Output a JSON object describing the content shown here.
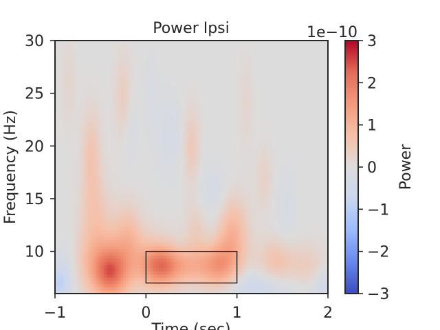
{
  "chart_data": {
    "type": "heatmap",
    "title": "Power Ipsi",
    "xlabel": "Time (sec)",
    "ylabel": "Frequency (Hz)",
    "xlim": [
      -1,
      2
    ],
    "ylim": [
      6,
      30
    ],
    "x_ticks": [
      -1,
      0,
      1,
      2
    ],
    "x_tick_labels": [
      "−1",
      "0",
      "1",
      "2"
    ],
    "y_ticks": [
      10,
      15,
      20,
      25,
      30
    ],
    "y_tick_labels": [
      "10",
      "15",
      "20",
      "25",
      "30"
    ],
    "colormap": "coolwarm",
    "grid": false,
    "colorbar": {
      "label": "Power",
      "offset_text": "1e−10",
      "range": [
        -3,
        3
      ],
      "ticks": [
        -3,
        -2,
        -1,
        0,
        1,
        2,
        3
      ],
      "tick_labels": [
        "−3",
        "−2",
        "−1",
        "0",
        "1",
        "2",
        "3"
      ],
      "colors": [
        "#3b4cc0",
        "#6788ee",
        "#9abbff",
        "#c9d7f0",
        "#dddcdc",
        "#f6bfa6",
        "#f49a7b",
        "#e36c55",
        "#b40426"
      ]
    },
    "blobs": [
      {
        "t": -0.4,
        "f": 7.8,
        "st": 0.14,
        "sf": 1.6,
        "value": 1.8
      },
      {
        "t": -0.35,
        "f": 9.5,
        "st": 0.35,
        "sf": 2.0,
        "value": 0.9
      },
      {
        "t": 0.15,
        "f": 8.6,
        "st": 0.14,
        "sf": 1.3,
        "value": 1.7
      },
      {
        "t": 0.45,
        "f": 8.6,
        "st": 0.2,
        "sf": 1.2,
        "value": 0.9
      },
      {
        "t": 0.8,
        "f": 8.6,
        "st": 0.14,
        "sf": 1.5,
        "value": 1.3
      },
      {
        "t": 0.95,
        "f": 11.5,
        "st": 0.12,
        "sf": 2.5,
        "value": 1.0
      },
      {
        "t": -0.55,
        "f": 13.5,
        "st": 0.12,
        "sf": 2.5,
        "value": 0.5
      },
      {
        "t": -0.2,
        "f": 12.0,
        "st": 0.1,
        "sf": 2.0,
        "value": 0.5
      },
      {
        "t": 0.55,
        "f": 12.0,
        "st": 0.08,
        "sf": 2.0,
        "value": 0.4
      },
      {
        "t": 1.45,
        "f": 9.0,
        "st": 0.15,
        "sf": 1.5,
        "value": 0.7
      },
      {
        "t": 1.8,
        "f": 8.5,
        "st": 0.12,
        "sf": 1.5,
        "value": 0.4
      },
      {
        "t": -0.6,
        "f": 19.0,
        "st": 0.07,
        "sf": 3.0,
        "value": 0.6
      },
      {
        "t": -0.25,
        "f": 24.0,
        "st": 0.06,
        "sf": 3.0,
        "value": 0.5
      },
      {
        "t": 0.5,
        "f": 20.0,
        "st": 0.06,
        "sf": 2.5,
        "value": 0.5
      },
      {
        "t": 1.3,
        "f": 17.0,
        "st": 0.06,
        "sf": 2.0,
        "value": 0.3
      },
      {
        "t": -0.85,
        "f": 26.0,
        "st": 0.05,
        "sf": 3.0,
        "value": 0.2
      },
      {
        "t": 1.1,
        "f": 24.0,
        "st": 0.05,
        "sf": 3.0,
        "value": 0.2
      },
      {
        "t": -0.2,
        "f": 21.5,
        "st": 0.07,
        "sf": 2.5,
        "value": -0.3
      },
      {
        "t": 0.25,
        "f": 21.0,
        "st": 0.1,
        "sf": 3.0,
        "value": -0.3
      },
      {
        "t": 0.75,
        "f": 15.5,
        "st": 0.12,
        "sf": 2.0,
        "value": -0.35
      },
      {
        "t": 1.55,
        "f": 14.0,
        "st": 0.08,
        "sf": 3.0,
        "value": -0.25
      },
      {
        "t": 0.05,
        "f": 25.0,
        "st": 0.06,
        "sf": 3.0,
        "value": -0.2
      },
      {
        "t": -0.95,
        "f": 7.0,
        "st": 0.08,
        "sf": 1.5,
        "value": -0.9
      },
      {
        "t": -0.85,
        "f": 9.5,
        "st": 0.1,
        "sf": 2.0,
        "value": -0.4
      },
      {
        "t": 1.2,
        "f": 6.5,
        "st": 0.3,
        "sf": 1.2,
        "value": -0.6
      },
      {
        "t": 1.95,
        "f": 6.6,
        "st": 0.1,
        "sf": 1.3,
        "value": -0.5
      }
    ],
    "roi_box": {
      "t": [
        0,
        1
      ],
      "f": [
        7,
        10
      ]
    }
  }
}
